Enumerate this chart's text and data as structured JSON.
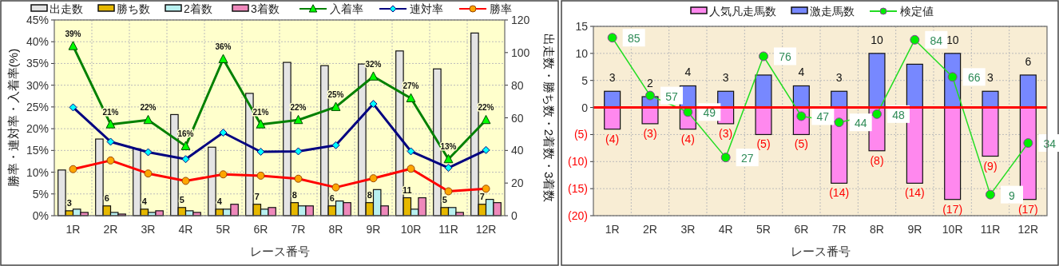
{
  "chart_data": [
    {
      "type": "bar",
      "categories": [
        "1R",
        "2R",
        "3R",
        "4R",
        "5R",
        "6R",
        "7R",
        "8R",
        "9R",
        "10R",
        "11R",
        "12R"
      ],
      "xlabel": "レース番号",
      "ylabel": "勝率・連対率・入着率(%)",
      "y2label": "出走数・勝ち数・2着数・3着数",
      "ylim": [
        0,
        45
      ],
      "yticks": [
        {
          "value": 0,
          "label": "0%"
        },
        {
          "value": 5,
          "label": "5%"
        },
        {
          "value": 10,
          "label": "10%"
        },
        {
          "value": 15,
          "label": "15%"
        },
        {
          "value": 20,
          "label": "20%"
        },
        {
          "value": 25,
          "label": "25%"
        },
        {
          "value": 30,
          "label": "30%"
        },
        {
          "value": 35,
          "label": "35%"
        },
        {
          "value": 40,
          "label": "40%"
        },
        {
          "value": 45,
          "label": "45%"
        }
      ],
      "y2lim": [
        0,
        120
      ],
      "y2ticks": [
        0,
        20,
        40,
        60,
        80,
        100,
        120
      ],
      "grid": true,
      "legend": "top",
      "series": [
        {
          "name": "出走数",
          "axis": "y2",
          "color": "#e4e4e4",
          "values": [
            28,
            47,
            41,
            62,
            42,
            75,
            94,
            92,
            93,
            101,
            90,
            112
          ]
        },
        {
          "name": "勝ち数",
          "axis": "y2",
          "color": "#e6b800",
          "values": [
            3,
            6,
            4,
            5,
            4,
            7,
            8,
            6,
            8,
            11,
            5,
            7
          ],
          "value_labels": [
            "3",
            "6",
            "4",
            "5",
            "4",
            "7",
            "8",
            "6",
            "8",
            "11",
            "5",
            "7"
          ]
        },
        {
          "name": "2着数",
          "axis": "y2",
          "color": "#b8f0f0",
          "values": [
            4,
            2,
            2,
            3,
            4,
            4,
            6,
            9,
            16,
            4,
            5,
            10
          ]
        },
        {
          "name": "3着数",
          "axis": "y2",
          "color": "#ee88bb",
          "values": [
            2,
            1,
            3,
            2,
            7,
            5,
            6,
            8,
            6,
            11,
            2,
            8
          ]
        },
        {
          "name": "入着率",
          "type": "line",
          "color": "#008000",
          "marker": "triangle",
          "values": [
            39,
            21,
            22,
            16,
            36,
            21,
            22,
            25,
            32,
            27,
            13,
            22
          ],
          "value_labels": [
            "39%",
            "21%",
            "22%",
            "16%",
            "36%",
            "21%",
            "22%",
            "25%",
            "32%",
            "27%",
            "13%",
            "22%"
          ]
        },
        {
          "name": "連対率",
          "type": "line",
          "color": "#000080",
          "marker": "diamond",
          "values": [
            24.9,
            17.0,
            14.6,
            13.0,
            19.1,
            14.7,
            14.8,
            16.2,
            25.7,
            14.8,
            11.0,
            15.1
          ]
        },
        {
          "name": "勝率",
          "type": "line",
          "color": "#ff0000",
          "marker": "circle",
          "values": [
            10.7,
            12.7,
            9.7,
            8.0,
            9.5,
            9.2,
            8.5,
            6.5,
            8.6,
            10.8,
            5.6,
            6.2
          ]
        }
      ]
    },
    {
      "type": "bar",
      "stacked": true,
      "categories": [
        "1R",
        "2R",
        "3R",
        "4R",
        "5R",
        "6R",
        "7R",
        "8R",
        "9R",
        "10R",
        "11R",
        "12R"
      ],
      "xlabel": "レース番号",
      "ylim": [
        -20,
        15
      ],
      "yticks": [
        15,
        10,
        5,
        0,
        {
          "value": -5,
          "label": "(5)"
        },
        {
          "value": -10,
          "label": "(10)"
        },
        {
          "value": -15,
          "label": "(15)"
        },
        {
          "value": -20,
          "label": "(20)"
        }
      ],
      "y2lim": [
        -1.2,
        90.5
      ],
      "grid": true,
      "legend": "top",
      "ref_lines": [
        {
          "axis": "y",
          "value": 0,
          "color": "#ff0000"
        }
      ],
      "series": [
        {
          "name": "人気凡走馬数",
          "color": "#ff88ee",
          "values": [
            -4,
            -3,
            -4,
            -3,
            -5,
            -5,
            -14,
            -8,
            -14,
            -17,
            -9,
            -17
          ],
          "value_labels": [
            "(4)",
            "(3)",
            "(4)",
            "(3)",
            "(5)",
            "(5)",
            "(14)",
            "(8)",
            "(14)",
            "(17)",
            "(9)",
            "(17)"
          ]
        },
        {
          "name": "激走馬数",
          "color": "#7788ff",
          "values": [
            3,
            2,
            4,
            3,
            6,
            4,
            3,
            10,
            8,
            10,
            3,
            6
          ],
          "value_labels": [
            "3",
            "2",
            "4",
            "3",
            null,
            "4",
            "3",
            "10",
            null,
            "10",
            "3",
            "6"
          ]
        },
        {
          "name": "検定値",
          "type": "line",
          "axis": "y2",
          "color": "#22dd22",
          "marker": "circle",
          "values": [
            85,
            57,
            49,
            27,
            76,
            47,
            44,
            48,
            84,
            66,
            9,
            34
          ],
          "value_labels": [
            "85",
            "57",
            "49",
            "27",
            "76",
            "47",
            "44",
            "48",
            "84",
            "66",
            "9",
            "34"
          ]
        }
      ]
    }
  ]
}
